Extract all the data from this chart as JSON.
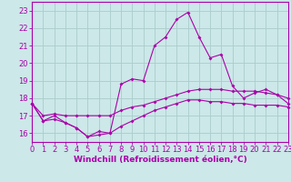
{
  "xlabel": "Windchill (Refroidissement éolien,°C)",
  "bg_color": "#cce8e8",
  "grid_color": "#aacccc",
  "line_color": "#aa00aa",
  "xlim": [
    0,
    23
  ],
  "ylim": [
    15.5,
    23.5
  ],
  "yticks": [
    16,
    17,
    18,
    19,
    20,
    21,
    22,
    23
  ],
  "xticks": [
    0,
    1,
    2,
    3,
    4,
    5,
    6,
    7,
    8,
    9,
    10,
    11,
    12,
    13,
    14,
    15,
    16,
    17,
    18,
    19,
    20,
    21,
    22,
    23
  ],
  "hours": [
    0,
    1,
    2,
    3,
    4,
    5,
    6,
    7,
    8,
    9,
    10,
    11,
    12,
    13,
    14,
    15,
    16,
    17,
    18,
    19,
    20,
    21,
    22,
    23
  ],
  "line1": [
    17.7,
    16.7,
    17.0,
    16.6,
    16.3,
    15.8,
    16.1,
    16.0,
    18.8,
    19.1,
    19.0,
    21.0,
    21.5,
    22.5,
    22.9,
    21.5,
    20.3,
    20.5,
    18.7,
    18.0,
    18.3,
    18.5,
    18.2,
    17.7
  ],
  "line2": [
    17.7,
    17.0,
    17.1,
    17.0,
    17.0,
    17.0,
    17.0,
    17.0,
    17.3,
    17.5,
    17.6,
    17.8,
    18.0,
    18.2,
    18.4,
    18.5,
    18.5,
    18.5,
    18.4,
    18.4,
    18.4,
    18.3,
    18.2,
    18.0
  ],
  "line3": [
    17.7,
    16.7,
    16.8,
    16.6,
    16.3,
    15.8,
    15.9,
    16.0,
    16.4,
    16.7,
    17.0,
    17.3,
    17.5,
    17.7,
    17.9,
    17.9,
    17.8,
    17.8,
    17.7,
    17.7,
    17.6,
    17.6,
    17.6,
    17.5
  ],
  "tick_fontsize": 6.0,
  "xlabel_fontsize": 6.5
}
